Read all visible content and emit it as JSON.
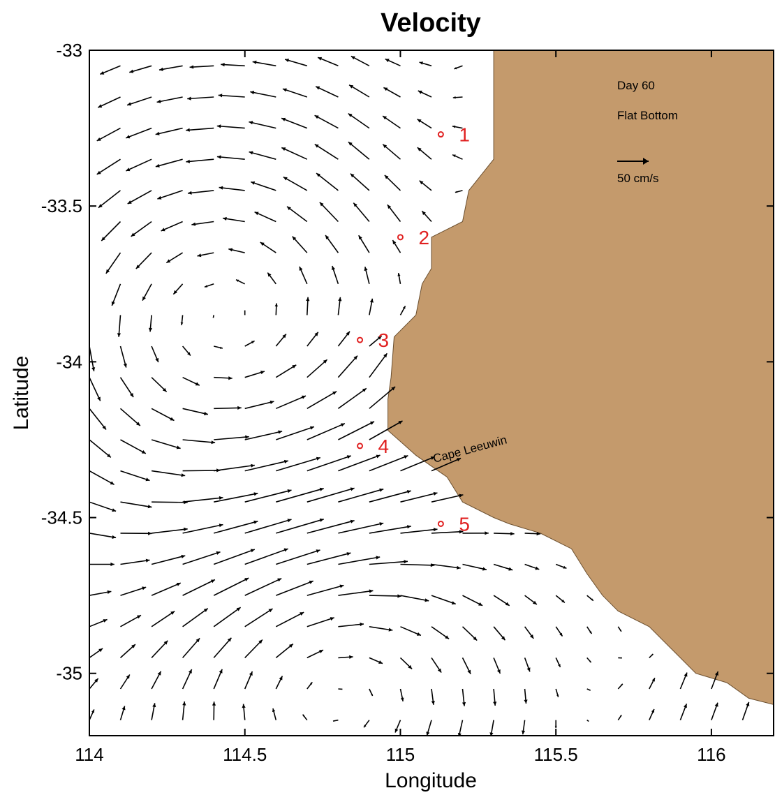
{
  "chart_data": {
    "type": "vector_field",
    "title": "Velocity",
    "xlabel": "Longitude",
    "ylabel": "Latitude",
    "xlim": [
      114,
      116.2
    ],
    "ylim": [
      -35.2,
      -33
    ],
    "xticks": [
      114,
      114.5,
      115,
      115.5,
      116
    ],
    "yticks": [
      -33,
      -33.5,
      -34,
      -34.5,
      -35
    ],
    "xtick_labels": [
      "114",
      "114.5",
      "115",
      "115.5",
      "116"
    ],
    "ytick_labels": [
      "-33",
      "-33.5",
      "-34",
      "-34.5",
      "-35"
    ],
    "grid": false,
    "annotations": {
      "day": "Day 60",
      "case": "Flat Bottom",
      "reference_label": "50 cm/s",
      "reference_speed_cms": 50,
      "place": "Cape Leeuwin"
    },
    "land_color": "#c49a6c",
    "vector_color": "#000000",
    "station_color": "#e02020",
    "coastline": [
      [
        115.3,
        -33.0
      ],
      [
        115.3,
        -33.35
      ],
      [
        115.22,
        -33.45
      ],
      [
        115.2,
        -33.55
      ],
      [
        115.1,
        -33.6
      ],
      [
        115.1,
        -33.7
      ],
      [
        115.07,
        -33.75
      ],
      [
        115.05,
        -33.85
      ],
      [
        114.98,
        -33.92
      ],
      [
        114.97,
        -34.05
      ],
      [
        114.96,
        -34.12
      ],
      [
        114.96,
        -34.22
      ],
      [
        115.05,
        -34.3
      ],
      [
        115.15,
        -34.37
      ],
      [
        115.2,
        -34.45
      ],
      [
        115.3,
        -34.5
      ],
      [
        115.35,
        -34.52
      ],
      [
        115.45,
        -34.55
      ],
      [
        115.55,
        -34.6
      ],
      [
        115.6,
        -34.68
      ],
      [
        115.65,
        -34.75
      ],
      [
        115.7,
        -34.8
      ],
      [
        115.8,
        -34.85
      ],
      [
        115.85,
        -34.9
      ],
      [
        115.9,
        -34.95
      ],
      [
        115.95,
        -35.0
      ],
      [
        116.05,
        -35.03
      ],
      [
        116.12,
        -35.08
      ],
      [
        116.2,
        -35.1
      ]
    ],
    "stations": [
      {
        "label": "1",
        "lon": 115.13,
        "lat": -33.27
      },
      {
        "label": "2",
        "lon": 115.0,
        "lat": -33.6
      },
      {
        "label": "3",
        "lon": 114.87,
        "lat": -33.93
      },
      {
        "label": "4",
        "lon": 114.87,
        "lat": -34.27
      },
      {
        "label": "5",
        "lon": 115.13,
        "lat": -34.52
      }
    ],
    "flow_model": {
      "description": "Anticyclonic eddy west of Cape Leeuwin (north) and cyclonic eddy to the south",
      "north_eddy": {
        "center_lon": 114.45,
        "center_lat": -33.9,
        "radius_deg": 0.6,
        "rotation": "counterclockwise",
        "peak_speed_cms": 45
      },
      "south_eddy": {
        "center_lon": 114.75,
        "center_lat": -34.95,
        "radius_deg": 0.45,
        "rotation": "clockwise",
        "peak_speed_cms": 35
      },
      "grid_spacing_deg": 0.1
    }
  }
}
